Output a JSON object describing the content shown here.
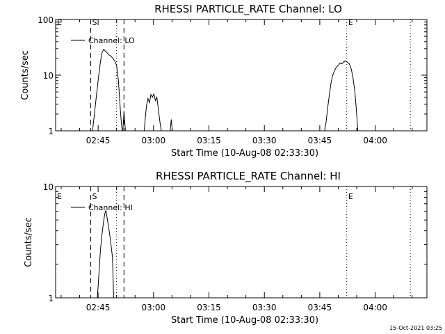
{
  "timestamp": "15-Oct-2021 03:25",
  "chart_data": [
    {
      "type": "line",
      "title": "RHESSI PARTICLE_RATE Channel: LO",
      "xlabel": "Start Time (10-Aug-08 02:33:30)",
      "ylabel": "Counts/sec",
      "yscale": "log",
      "ylim": [
        1,
        100
      ],
      "xlim_minutes_from_start": [
        0,
        100.5
      ],
      "x_ticks": [
        {
          "label": "02:45",
          "minutes": 11.5
        },
        {
          "label": "03:00",
          "minutes": 26.5
        },
        {
          "label": "03:15",
          "minutes": 41.5
        },
        {
          "label": "03:30",
          "minutes": 56.5
        },
        {
          "label": "03:45",
          "minutes": 71.5
        },
        {
          "label": "04:00",
          "minutes": 86.5
        }
      ],
      "y_ticks": [
        {
          "label": "1",
          "value": 1
        },
        {
          "label": "10",
          "value": 10
        },
        {
          "label": "100",
          "value": 100
        }
      ],
      "legend": {
        "label": "Channel: LO",
        "position": "top-left"
      },
      "markers": [
        {
          "label": "E",
          "minutes": 0,
          "style": "none"
        },
        {
          "label": "S",
          "minutes": 9.5,
          "style": "dashed"
        },
        {
          "label": "",
          "minutes": 16.5,
          "style": "dotted"
        },
        {
          "label": "",
          "minutes": 18.5,
          "style": "dashed"
        },
        {
          "label": "E",
          "minutes": 78.8,
          "style": "dotted"
        },
        {
          "label": "",
          "minutes": 96.0,
          "style": "dotted"
        }
      ],
      "series": [
        {
          "name": "Channel: LO",
          "segments": [
            [
              [
                10.0,
                1
              ],
              [
                10.5,
                2
              ],
              [
                11.0,
                4
              ],
              [
                11.5,
                8
              ],
              [
                12.0,
                15
              ],
              [
                12.5,
                25
              ],
              [
                13.0,
                29
              ],
              [
                13.5,
                27
              ],
              [
                14.0,
                25
              ],
              [
                14.5,
                23
              ],
              [
                15.0,
                22
              ],
              [
                15.5,
                20
              ],
              [
                16.0,
                18
              ],
              [
                16.5,
                15
              ],
              [
                17.0,
                8
              ],
              [
                17.3,
                4
              ],
              [
                17.6,
                2
              ],
              [
                18.0,
                1
              ]
            ],
            [
              [
                18.2,
                1
              ],
              [
                18.5,
                2.2
              ],
              [
                18.9,
                1
              ]
            ],
            [
              [
                24.0,
                1
              ],
              [
                24.3,
                1.8
              ],
              [
                24.6,
                2.8
              ],
              [
                25.0,
                3.8
              ],
              [
                25.4,
                3.2
              ],
              [
                25.8,
                4.5
              ],
              [
                26.2,
                4
              ],
              [
                26.6,
                4.6
              ],
              [
                27.0,
                3.5
              ],
              [
                27.4,
                4
              ],
              [
                27.8,
                2.5
              ],
              [
                28.2,
                1.5
              ],
              [
                28.6,
                1
              ]
            ],
            [
              [
                31.0,
                1
              ],
              [
                31.3,
                1.6
              ],
              [
                31.6,
                1
              ]
            ],
            [
              [
                72.8,
                1
              ],
              [
                73.2,
                1.4
              ],
              [
                73.6,
                2.5
              ],
              [
                74.0,
                4
              ],
              [
                74.5,
                7
              ],
              [
                75.0,
                10
              ],
              [
                75.5,
                12
              ],
              [
                76.0,
                14
              ],
              [
                76.5,
                15
              ],
              [
                77.0,
                16.5
              ],
              [
                77.5,
                16
              ],
              [
                78.0,
                17.5
              ],
              [
                78.5,
                18
              ],
              [
                79.0,
                17
              ],
              [
                79.5,
                16
              ],
              [
                80.0,
                13
              ],
              [
                80.5,
                9
              ],
              [
                81.0,
                5
              ],
              [
                81.5,
                2
              ],
              [
                81.8,
                1
              ]
            ]
          ]
        }
      ]
    },
    {
      "type": "line",
      "title": "RHESSI PARTICLE_RATE Channel: HI",
      "xlabel": "Start Time (10-Aug-08 02:33:30)",
      "ylabel": "Counts/sec",
      "yscale": "log",
      "ylim": [
        1,
        10
      ],
      "xlim_minutes_from_start": [
        0,
        100.5
      ],
      "x_ticks": [
        {
          "label": "02:45",
          "minutes": 11.5
        },
        {
          "label": "03:00",
          "minutes": 26.5
        },
        {
          "label": "03:15",
          "minutes": 41.5
        },
        {
          "label": "03:30",
          "minutes": 56.5
        },
        {
          "label": "03:45",
          "minutes": 71.5
        },
        {
          "label": "04:00",
          "minutes": 86.5
        }
      ],
      "y_ticks": [
        {
          "label": "1",
          "value": 1
        },
        {
          "label": "10",
          "value": 10
        }
      ],
      "legend": {
        "label": "Channel: HI",
        "position": "top-left"
      },
      "markers": [
        {
          "label": "E",
          "minutes": 0,
          "style": "none"
        },
        {
          "label": "S",
          "minutes": 9.5,
          "style": "dashed"
        },
        {
          "label": "",
          "minutes": 16.5,
          "style": "dotted"
        },
        {
          "label": "",
          "minutes": 18.5,
          "style": "dashed"
        },
        {
          "label": "E",
          "minutes": 78.8,
          "style": "dotted"
        },
        {
          "label": "",
          "minutes": 96.0,
          "style": "dotted"
        }
      ],
      "series": [
        {
          "name": "Channel: HI",
          "segments": [
            [
              [
                11.3,
                1
              ],
              [
                11.7,
                1.6
              ],
              [
                12.1,
                2.6
              ],
              [
                12.5,
                3.6
              ],
              [
                12.9,
                4.6
              ],
              [
                13.3,
                5.7
              ],
              [
                13.6,
                6.1
              ],
              [
                13.9,
                5.3
              ],
              [
                14.2,
                4.6
              ],
              [
                14.5,
                4
              ],
              [
                14.8,
                3.4
              ],
              [
                15.1,
                2.8
              ],
              [
                15.4,
                2.3
              ],
              [
                15.7,
                1
              ]
            ]
          ]
        }
      ]
    }
  ]
}
